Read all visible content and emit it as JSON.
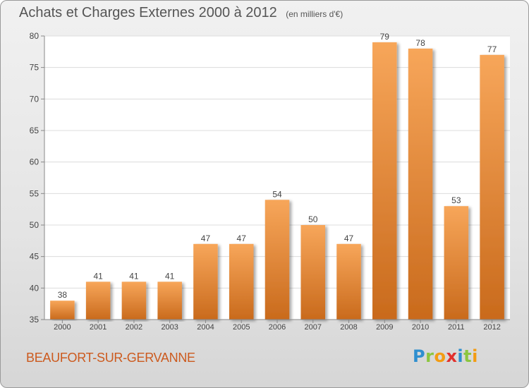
{
  "title": "Achats et Charges Externes 2000 à 2012",
  "subtitle": "(en milliers d'€)",
  "commune": "BEAUFORT-SUR-GERVANNE",
  "logo": {
    "text": "Proxiti",
    "letters": [
      "P",
      "r",
      "o",
      "x",
      "i",
      "t",
      "i"
    ],
    "colors": [
      "#2f8fcf",
      "#8cc63f",
      "#f39c12",
      "#e2312d",
      "#2f8fcf",
      "#8cc63f",
      "#f39c12"
    ]
  },
  "chart_data": {
    "type": "bar",
    "categories": [
      "2000",
      "2001",
      "2002",
      "2003",
      "2004",
      "2005",
      "2006",
      "2007",
      "2008",
      "2009",
      "2010",
      "2011",
      "2012"
    ],
    "values": [
      38,
      41,
      41,
      41,
      47,
      47,
      54,
      50,
      47,
      79,
      78,
      53,
      77
    ],
    "value_labels": [
      "38",
      "41",
      "41",
      "41",
      "47",
      "47",
      "54",
      "50",
      "47",
      "79",
      "78",
      "53",
      "77"
    ],
    "yticks": [
      "35",
      "40",
      "45",
      "50",
      "55",
      "60",
      "65",
      "70",
      "75",
      "80"
    ],
    "ylim": [
      35,
      80
    ],
    "grid": true,
    "bar_color": "#f0903a"
  }
}
